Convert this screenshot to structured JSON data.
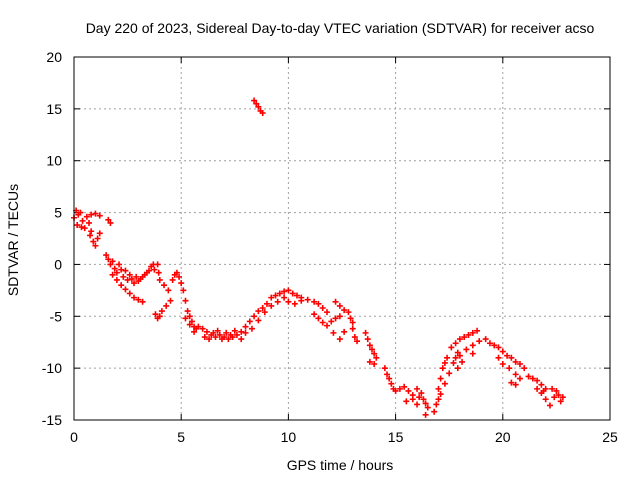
{
  "chart_data": {
    "type": "scatter",
    "title": "Day 220 of 2023, Sidereal Day-to-day VTEC variation (SDTVAR) for receiver acso",
    "xlabel": "GPS time / hours",
    "ylabel": "SDTVAR / TECUs",
    "xlim": [
      0,
      25
    ],
    "ylim": [
      -15,
      20
    ],
    "x_ticks": [
      0,
      5,
      10,
      15,
      20,
      25
    ],
    "y_ticks": [
      -15,
      -10,
      -5,
      0,
      5,
      10,
      15,
      20
    ],
    "x_tick_labels": [
      "0",
      "5",
      "10",
      "15",
      "20",
      "25"
    ],
    "y_tick_labels": [
      "-15",
      "-10",
      "-5",
      "0",
      "5",
      "10",
      "15",
      "20"
    ],
    "grid": true,
    "marker": "plus",
    "series_color": "#ff0000",
    "series": [
      {
        "name": "SDTVAR",
        "points": [
          [
            0.0,
            4.5
          ],
          [
            0.1,
            5.2
          ],
          [
            0.15,
            3.8
          ],
          [
            0.2,
            4.8
          ],
          [
            0.3,
            5.0
          ],
          [
            0.35,
            3.6
          ],
          [
            0.4,
            4.2
          ],
          [
            0.5,
            3.5
          ],
          [
            0.6,
            4.6
          ],
          [
            0.7,
            4.0
          ],
          [
            0.75,
            2.8
          ],
          [
            0.8,
            3.2
          ],
          [
            0.9,
            2.2
          ],
          [
            1.0,
            1.8
          ],
          [
            1.1,
            2.5
          ],
          [
            1.2,
            3.0
          ],
          [
            0.8,
            4.8
          ],
          [
            1.0,
            4.9
          ],
          [
            1.2,
            4.7
          ],
          [
            1.6,
            4.3
          ],
          [
            1.7,
            4.0
          ],
          [
            1.5,
            0.9
          ],
          [
            1.6,
            0.5
          ],
          [
            1.7,
            0.0
          ],
          [
            1.8,
            0.3
          ],
          [
            1.9,
            -0.4
          ],
          [
            2.0,
            -0.8
          ],
          [
            2.1,
            0.0
          ],
          [
            2.2,
            -0.5
          ],
          [
            2.3,
            -1.2
          ],
          [
            2.4,
            -0.6
          ],
          [
            2.5,
            -1.5
          ],
          [
            2.6,
            -1.0
          ],
          [
            2.7,
            -1.4
          ],
          [
            2.8,
            -1.8
          ],
          [
            2.9,
            -1.2
          ],
          [
            3.0,
            -1.6
          ],
          [
            3.1,
            -1.4
          ],
          [
            3.2,
            -1.2
          ],
          [
            3.3,
            -1.0
          ],
          [
            3.4,
            -0.8
          ],
          [
            3.5,
            -0.6
          ],
          [
            3.6,
            -0.2
          ],
          [
            3.7,
            0.0
          ],
          [
            3.75,
            -0.5
          ],
          [
            1.8,
            -1.0
          ],
          [
            2.0,
            -1.5
          ],
          [
            2.2,
            -2.0
          ],
          [
            2.4,
            -2.4
          ],
          [
            2.6,
            -2.8
          ],
          [
            2.8,
            -3.2
          ],
          [
            3.0,
            -3.4
          ],
          [
            3.2,
            -3.6
          ],
          [
            3.9,
            0.0
          ],
          [
            3.95,
            -0.8
          ],
          [
            3.8,
            -4.8
          ],
          [
            3.9,
            -5.2
          ],
          [
            4.0,
            -5.0
          ],
          [
            4.1,
            -4.5
          ],
          [
            4.3,
            -4.0
          ],
          [
            4.5,
            -3.5
          ],
          [
            4.0,
            -1.5
          ],
          [
            4.2,
            -2.0
          ],
          [
            4.4,
            -2.5
          ],
          [
            4.6,
            -1.5
          ],
          [
            4.7,
            -1.0
          ],
          [
            4.8,
            -0.8
          ],
          [
            4.9,
            -1.2
          ],
          [
            5.0,
            -1.8
          ],
          [
            5.1,
            -2.5
          ],
          [
            5.2,
            -3.5
          ],
          [
            5.3,
            -4.5
          ],
          [
            5.4,
            -5.0
          ],
          [
            5.5,
            -5.5
          ],
          [
            5.6,
            -6.0
          ],
          [
            5.7,
            -6.2
          ],
          [
            5.8,
            -6.0
          ],
          [
            5.2,
            -5.2
          ],
          [
            5.4,
            -5.8
          ],
          [
            5.6,
            -6.5
          ],
          [
            6.0,
            -6.2
          ],
          [
            6.2,
            -6.5
          ],
          [
            6.4,
            -6.8
          ],
          [
            6.6,
            -7.0
          ],
          [
            6.8,
            -6.8
          ],
          [
            7.0,
            -7.0
          ],
          [
            7.2,
            -7.2
          ],
          [
            7.4,
            -7.0
          ],
          [
            6.1,
            -7.0
          ],
          [
            6.3,
            -7.2
          ],
          [
            6.5,
            -6.6
          ],
          [
            6.7,
            -6.4
          ],
          [
            6.9,
            -7.2
          ],
          [
            7.1,
            -6.6
          ],
          [
            7.3,
            -6.8
          ],
          [
            7.5,
            -6.4
          ],
          [
            7.6,
            -6.8
          ],
          [
            7.8,
            -6.5
          ],
          [
            8.0,
            -6.0
          ],
          [
            8.2,
            -5.5
          ],
          [
            8.4,
            -5.0
          ],
          [
            8.6,
            -4.5
          ],
          [
            8.8,
            -4.2
          ],
          [
            9.0,
            -3.8
          ],
          [
            7.8,
            -7.2
          ],
          [
            8.0,
            -6.6
          ],
          [
            8.3,
            -6.2
          ],
          [
            8.6,
            -5.4
          ],
          [
            8.9,
            -4.6
          ],
          [
            9.2,
            -4.0
          ],
          [
            9.5,
            -3.6
          ],
          [
            9.8,
            -3.2
          ],
          [
            8.4,
            15.8
          ],
          [
            8.5,
            15.5
          ],
          [
            8.6,
            15.2
          ],
          [
            8.7,
            14.8
          ],
          [
            8.8,
            14.6
          ],
          [
            9.2,
            -3.2
          ],
          [
            9.4,
            -3.0
          ],
          [
            9.6,
            -2.8
          ],
          [
            9.8,
            -2.6
          ],
          [
            10.0,
            -2.5
          ],
          [
            10.2,
            -2.8
          ],
          [
            10.4,
            -3.0
          ],
          [
            10.6,
            -3.2
          ],
          [
            10.0,
            -3.6
          ],
          [
            10.3,
            -3.8
          ],
          [
            10.6,
            -3.5
          ],
          [
            10.9,
            -3.4
          ],
          [
            11.2,
            -3.6
          ],
          [
            11.4,
            -3.8
          ],
          [
            11.6,
            -4.2
          ],
          [
            11.8,
            -4.6
          ],
          [
            11.2,
            -4.8
          ],
          [
            11.4,
            -5.2
          ],
          [
            11.6,
            -5.6
          ],
          [
            11.8,
            -5.9
          ],
          [
            12.0,
            -5.5
          ],
          [
            12.2,
            -5.2
          ],
          [
            12.4,
            -5.0
          ],
          [
            12.2,
            -3.6
          ],
          [
            12.4,
            -4.0
          ],
          [
            12.6,
            -4.4
          ],
          [
            12.8,
            -4.6
          ],
          [
            12.9,
            -5.2
          ],
          [
            13.0,
            -5.6
          ],
          [
            12.6,
            -6.5
          ],
          [
            12.4,
            -7.2
          ],
          [
            12.1,
            -6.6
          ],
          [
            13.0,
            -6.2
          ],
          [
            13.1,
            -7.0
          ],
          [
            13.2,
            -7.4
          ],
          [
            13.6,
            -6.6
          ],
          [
            13.7,
            -7.2
          ],
          [
            13.8,
            -7.8
          ],
          [
            13.9,
            -8.2
          ],
          [
            14.0,
            -8.6
          ],
          [
            14.1,
            -9.0
          ],
          [
            13.8,
            -9.4
          ],
          [
            14.0,
            -9.6
          ],
          [
            14.5,
            -10.0
          ],
          [
            14.6,
            -10.6
          ],
          [
            14.7,
            -11.0
          ],
          [
            14.8,
            -11.5
          ],
          [
            14.9,
            -12.0
          ],
          [
            15.0,
            -12.2
          ],
          [
            15.2,
            -12.0
          ],
          [
            15.4,
            -11.8
          ],
          [
            15.6,
            -12.2
          ],
          [
            15.8,
            -12.6
          ],
          [
            16.0,
            -12.0
          ],
          [
            16.2,
            -12.4
          ],
          [
            16.3,
            -13.0
          ],
          [
            16.0,
            -13.5
          ],
          [
            15.5,
            -13.2
          ],
          [
            15.8,
            -13.0
          ],
          [
            16.1,
            -12.8
          ],
          [
            16.4,
            -13.4
          ],
          [
            16.5,
            -13.8
          ],
          [
            16.4,
            -14.5
          ],
          [
            16.8,
            -14.2
          ],
          [
            16.9,
            -13.5
          ],
          [
            17.0,
            -12.0
          ],
          [
            17.1,
            -11.0
          ],
          [
            17.2,
            -10.0
          ],
          [
            17.3,
            -9.5
          ],
          [
            17.4,
            -9.0
          ],
          [
            17.0,
            -13.0
          ],
          [
            17.1,
            -12.5
          ],
          [
            17.3,
            -11.5
          ],
          [
            17.5,
            -10.5
          ],
          [
            17.7,
            -9.5
          ],
          [
            17.9,
            -8.5
          ],
          [
            17.6,
            -8.0
          ],
          [
            17.8,
            -7.6
          ],
          [
            18.0,
            -7.2
          ],
          [
            18.2,
            -7.0
          ],
          [
            18.4,
            -6.8
          ],
          [
            18.6,
            -6.6
          ],
          [
            18.8,
            -6.4
          ],
          [
            17.8,
            -9.0
          ],
          [
            18.0,
            -8.8
          ],
          [
            18.3,
            -8.2
          ],
          [
            18.6,
            -7.8
          ],
          [
            18.9,
            -7.4
          ],
          [
            19.2,
            -7.2
          ],
          [
            19.4,
            -7.6
          ],
          [
            17.9,
            -10.0
          ],
          [
            18.1,
            -9.4
          ],
          [
            18.6,
            -8.6
          ],
          [
            19.6,
            -7.8
          ],
          [
            19.8,
            -8.0
          ],
          [
            20.0,
            -8.4
          ],
          [
            20.2,
            -8.8
          ],
          [
            20.4,
            -9.0
          ],
          [
            20.6,
            -9.4
          ],
          [
            20.8,
            -9.6
          ],
          [
            19.8,
            -9.0
          ],
          [
            20.0,
            -9.6
          ],
          [
            20.3,
            -10.0
          ],
          [
            20.6,
            -10.6
          ],
          [
            20.8,
            -11.0
          ],
          [
            20.4,
            -11.4
          ],
          [
            20.6,
            -11.6
          ],
          [
            21.0,
            -10.0
          ],
          [
            21.2,
            -10.8
          ],
          [
            21.4,
            -11.0
          ],
          [
            21.6,
            -11.2
          ],
          [
            21.8,
            -11.6
          ],
          [
            22.0,
            -12.0
          ],
          [
            21.8,
            -12.4
          ],
          [
            22.0,
            -13.0
          ],
          [
            22.2,
            -13.6
          ],
          [
            22.4,
            -12.8
          ],
          [
            22.5,
            -12.2
          ],
          [
            22.6,
            -12.6
          ],
          [
            22.7,
            -13.2
          ],
          [
            22.8,
            -12.8
          ],
          [
            21.6,
            -12.0
          ],
          [
            21.9,
            -12.2
          ],
          [
            22.3,
            -12.0
          ]
        ]
      }
    ]
  }
}
